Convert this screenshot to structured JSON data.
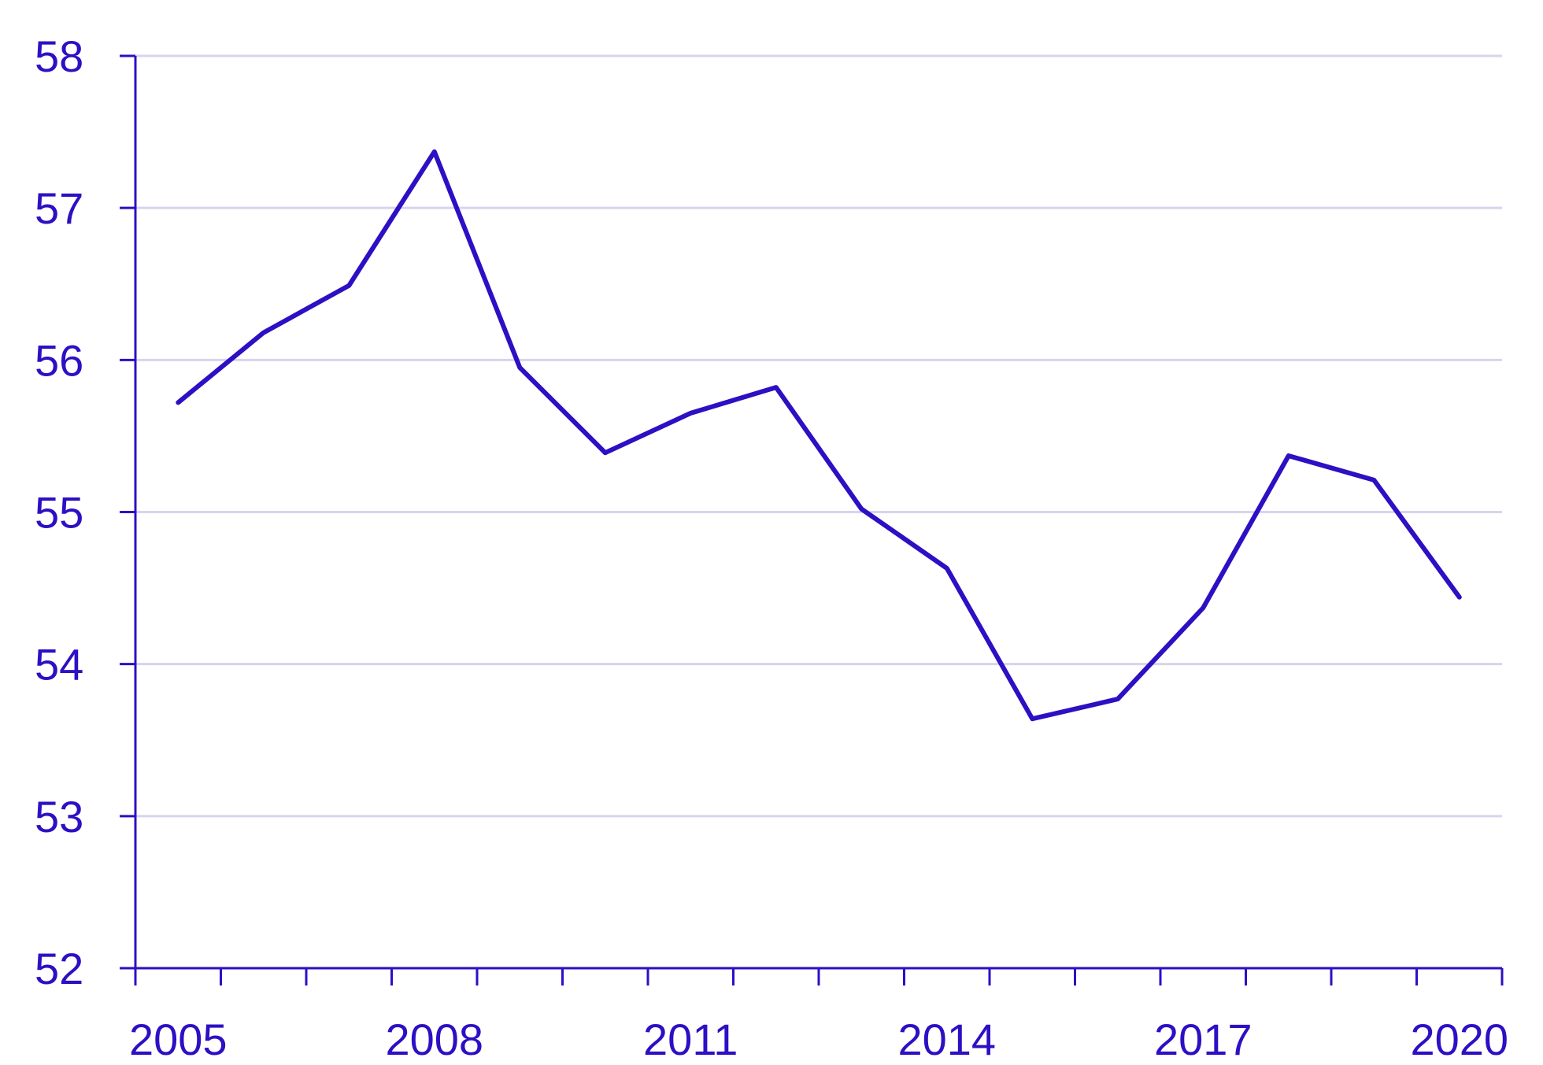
{
  "colors": {
    "line": "#2d0fc4",
    "axis": "#2d0fc4",
    "text": "#2d0fc4",
    "grid": "#d6d4f0",
    "background": "#ffffff"
  },
  "chart_data": {
    "type": "line",
    "title": "",
    "xlabel": "",
    "ylabel": "",
    "grid": "horizontal",
    "legend": "none",
    "xlim": [
      2004.5,
      2020.5
    ],
    "ylim": [
      52,
      58
    ],
    "x": [
      2005,
      2006,
      2007,
      2008,
      2009,
      2010,
      2011,
      2012,
      2013,
      2014,
      2015,
      2016,
      2017,
      2018,
      2019,
      2020
    ],
    "series": [
      {
        "values": [
          55.72,
          56.18,
          56.49,
          57.37,
          55.95,
          55.39,
          55.65,
          55.82,
          55.02,
          54.63,
          53.64,
          53.77,
          54.37,
          55.37,
          55.21,
          54.44
        ]
      }
    ],
    "x_ticks": [
      2005,
      2006,
      2007,
      2008,
      2009,
      2010,
      2011,
      2012,
      2013,
      2014,
      2015,
      2016,
      2017,
      2018,
      2019,
      2020
    ],
    "x_tick_labels": [
      "2005",
      "2008",
      "2011",
      "2014",
      "2017",
      "2020"
    ],
    "x_tick_label_values": [
      2005,
      2008,
      2011,
      2014,
      2017,
      2020
    ],
    "y_ticks": [
      52,
      53,
      54,
      55,
      56,
      57,
      58
    ],
    "y_tick_labels": [
      "52",
      "53",
      "54",
      "55",
      "56",
      "57",
      "58"
    ]
  }
}
